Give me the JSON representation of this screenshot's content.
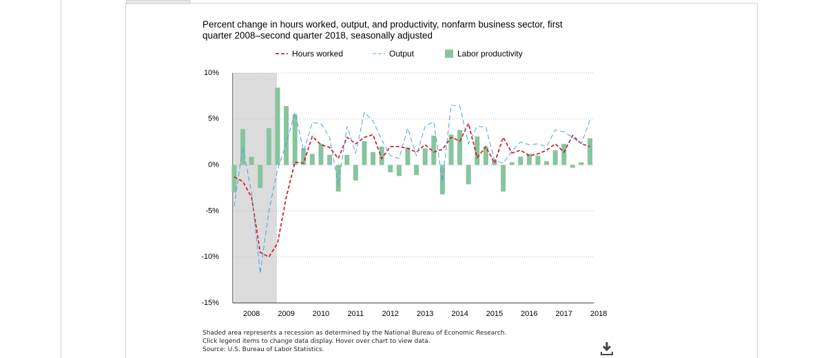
{
  "chart_data": {
    "type": "bar_line",
    "title": "Percent change in hours worked, output, and productivity, nonfarm business sector, first quarter 2008–second quarter 2018, seasonally adjusted",
    "categories": [
      null,
      null,
      "2008",
      null,
      null,
      null,
      "2009",
      null,
      null,
      null,
      "2010",
      null,
      null,
      null,
      "2011",
      null,
      null,
      null,
      "2012",
      null,
      null,
      null,
      "2013",
      null,
      null,
      null,
      "2014",
      null,
      null,
      null,
      "2015",
      null,
      null,
      null,
      "2016",
      null,
      null,
      null,
      "2017",
      null,
      null,
      null,
      "2018"
    ],
    "series": [
      {
        "name": "Hours worked",
        "kind": "line",
        "color": "#d21f2c",
        "values": [
          -1.3,
          -1.8,
          -3.5,
          -9.5,
          -10.0,
          -8.5,
          -3.5,
          0.3,
          0.2,
          3.1,
          2.2,
          1.9,
          0.7,
          3.0,
          2.3,
          3.0,
          3.3,
          0.7,
          2.0,
          2.0,
          1.8,
          1.4,
          2.2,
          1.4,
          1.7,
          3.0,
          2.6,
          4.5,
          0.8,
          2.0,
          0.2,
          3.0,
          1.3,
          1.6,
          1.0,
          1.2,
          1.6,
          2.3,
          1.4,
          3.2,
          2.3,
          2.0,
          null
        ]
      },
      {
        "name": "Output",
        "kind": "line",
        "color": "#4a9ee0",
        "values": [
          -4.5,
          2.0,
          -3.0,
          -11.8,
          -5.0,
          -0.5,
          2.3,
          5.7,
          1.5,
          4.6,
          4.5,
          3.0,
          -2.2,
          4.2,
          1.3,
          5.7,
          4.8,
          2.7,
          1.0,
          0.7,
          4.0,
          1.0,
          4.2,
          4.7,
          -1.8,
          6.5,
          6.4,
          2.3,
          4.2,
          4.1,
          0.5,
          0.2,
          1.5,
          2.5,
          2.2,
          2.3,
          2.0,
          3.8,
          3.6,
          3.0,
          2.3,
          4.9,
          null
        ]
      },
      {
        "name": "Labor productivity",
        "kind": "bar",
        "color": "#86c59e",
        "values": [
          -3.0,
          3.9,
          0.9,
          -2.5,
          4.0,
          8.4,
          6.4,
          5.5,
          1.8,
          1.2,
          2.3,
          1.1,
          -2.9,
          1.1,
          -1.7,
          2.6,
          1.4,
          2.0,
          -0.8,
          -1.2,
          1.9,
          -1.1,
          1.8,
          3.2,
          -3.2,
          3.3,
          3.8,
          -2.1,
          3.1,
          2.0,
          0.5,
          -2.9,
          0.3,
          0.9,
          1.2,
          1.0,
          0.4,
          1.6,
          2.3,
          -0.3,
          0.3,
          2.9,
          null
        ]
      }
    ],
    "ylim": [
      -15,
      10
    ],
    "yticks": [
      {
        "value": -15,
        "label": "-15%"
      },
      {
        "value": -10,
        "label": "-10%"
      },
      {
        "value": -5,
        "label": "-5%"
      },
      {
        "value": 0,
        "label": "0%"
      },
      {
        "value": 5,
        "label": "5%"
      },
      {
        "value": 10,
        "label": "10%"
      }
    ],
    "grid": true,
    "notes": [
      "Shaded area represents a recession as determined by the National Bureau of Economic Research.",
      "Click legend items to change data display. Hover over chart to view data.",
      "Source: U.S. Bureau of Labor Statistics."
    ]
  }
}
